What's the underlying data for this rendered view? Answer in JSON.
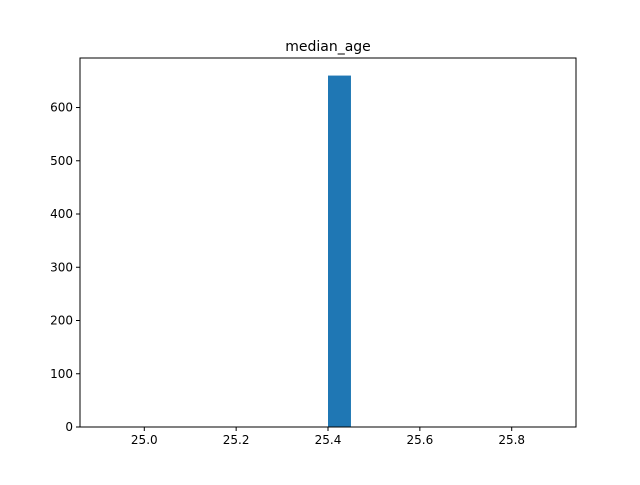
{
  "chart_data": {
    "type": "bar",
    "title": "median_age",
    "xlabel": "",
    "ylabel": "",
    "xlim": [
      24.86,
      25.94
    ],
    "ylim": [
      0,
      693
    ],
    "xticks": [
      {
        "value": 25.0,
        "label": "25.0"
      },
      {
        "value": 25.2,
        "label": "25.2"
      },
      {
        "value": 25.4,
        "label": "25.4"
      },
      {
        "value": 25.6,
        "label": "25.6"
      },
      {
        "value": 25.8,
        "label": "25.8"
      }
    ],
    "yticks": [
      {
        "value": 0,
        "label": "0"
      },
      {
        "value": 100,
        "label": "100"
      },
      {
        "value": 200,
        "label": "200"
      },
      {
        "value": 300,
        "label": "300"
      },
      {
        "value": 400,
        "label": "400"
      },
      {
        "value": 500,
        "label": "500"
      },
      {
        "value": 600,
        "label": "600"
      }
    ],
    "bars": [
      {
        "x0": 25.4,
        "x1": 25.45,
        "value": 660
      }
    ],
    "bar_color": "#1f77b4",
    "grid": false,
    "legend": "none"
  }
}
